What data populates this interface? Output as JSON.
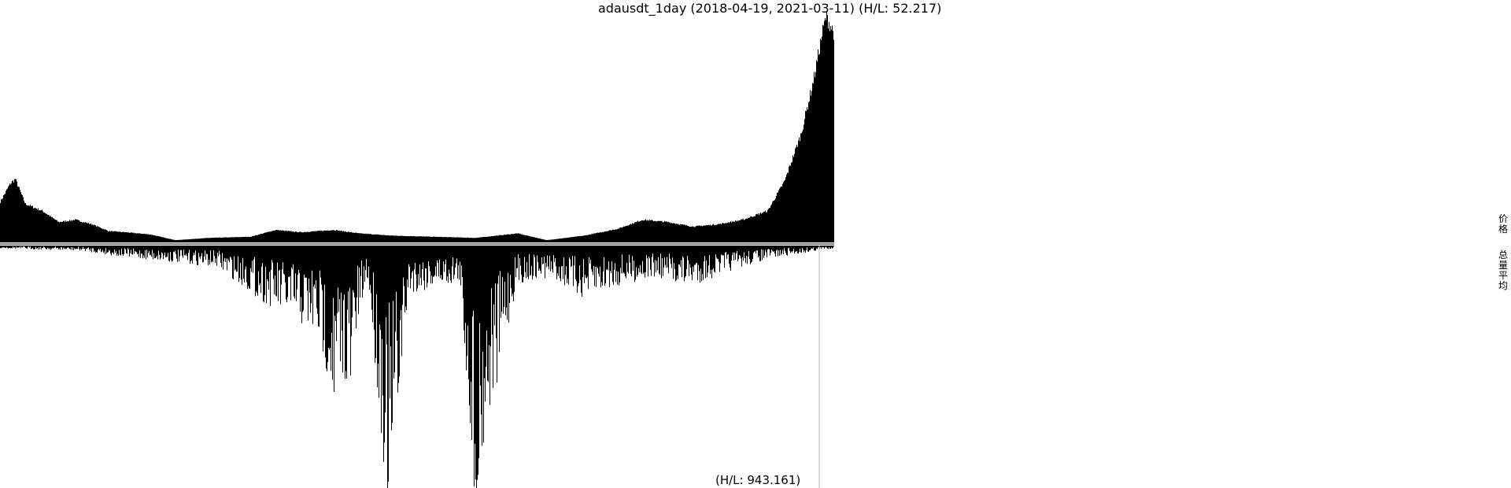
{
  "chart_data": {
    "type": "bar",
    "title": "adausdt_1day (2018-04-19, 2021-03-11) (H/L: 52.217)",
    "subtitle": "(H/L: 943.161)",
    "legend": [
      "价格",
      "总量平均"
    ],
    "legend_placement": "right",
    "x_range": [
      "2018-04-19",
      "2021-03-11"
    ],
    "grid": false,
    "series": [
      {
        "name": "价格",
        "hl_ratio": 52.217,
        "profile": [
          [
            0,
            0.18
          ],
          [
            0.012,
            0.26
          ],
          [
            0.018,
            0.28
          ],
          [
            0.03,
            0.17
          ],
          [
            0.05,
            0.14
          ],
          [
            0.07,
            0.09
          ],
          [
            0.09,
            0.1
          ],
          [
            0.11,
            0.08
          ],
          [
            0.13,
            0.05
          ],
          [
            0.15,
            0.045
          ],
          [
            0.18,
            0.035
          ],
          [
            0.21,
            0.01
          ],
          [
            0.25,
            0.02
          ],
          [
            0.3,
            0.025
          ],
          [
            0.33,
            0.055
          ],
          [
            0.36,
            0.045
          ],
          [
            0.4,
            0.055
          ],
          [
            0.43,
            0.04
          ],
          [
            0.47,
            0.03
          ],
          [
            0.52,
            0.025
          ],
          [
            0.57,
            0.02
          ],
          [
            0.62,
            0.04
          ],
          [
            0.655,
            0.01
          ],
          [
            0.7,
            0.03
          ],
          [
            0.74,
            0.06
          ],
          [
            0.77,
            0.1
          ],
          [
            0.8,
            0.09
          ],
          [
            0.83,
            0.07
          ],
          [
            0.86,
            0.08
          ],
          [
            0.89,
            0.1
          ],
          [
            0.92,
            0.14
          ],
          [
            0.94,
            0.27
          ],
          [
            0.96,
            0.48
          ],
          [
            0.975,
            0.72
          ],
          [
            0.985,
            0.92
          ],
          [
            0.99,
            1.0
          ],
          [
            1.0,
            0.92
          ]
        ]
      },
      {
        "name": "总量平均",
        "hl_ratio": 943.161,
        "profile": [
          [
            0,
            0.01
          ],
          [
            0.1,
            0.02
          ],
          [
            0.14,
            0.04
          ],
          [
            0.2,
            0.06
          ],
          [
            0.26,
            0.08
          ],
          [
            0.31,
            0.2
          ],
          [
            0.35,
            0.28
          ],
          [
            0.38,
            0.34
          ],
          [
            0.4,
            0.58
          ],
          [
            0.42,
            0.47
          ],
          [
            0.44,
            0.12
          ],
          [
            0.465,
            1.0
          ],
          [
            0.49,
            0.18
          ],
          [
            0.53,
            0.15
          ],
          [
            0.55,
            0.14
          ],
          [
            0.57,
            0.99
          ],
          [
            0.59,
            0.55
          ],
          [
            0.62,
            0.14
          ],
          [
            0.66,
            0.12
          ],
          [
            0.7,
            0.2
          ],
          [
            0.74,
            0.15
          ],
          [
            0.78,
            0.12
          ],
          [
            0.83,
            0.15
          ],
          [
            0.87,
            0.1
          ],
          [
            0.92,
            0.05
          ],
          [
            0.96,
            0.03
          ],
          [
            0.985,
            0.015
          ],
          [
            1.0,
            0.01
          ]
        ],
        "spikes": [
          [
            0.465,
            1.0
          ],
          [
            0.57,
            0.99
          ],
          [
            0.47,
            0.75
          ],
          [
            0.4,
            0.62
          ],
          [
            0.42,
            0.55
          ],
          [
            0.595,
            0.58
          ]
        ]
      }
    ]
  }
}
